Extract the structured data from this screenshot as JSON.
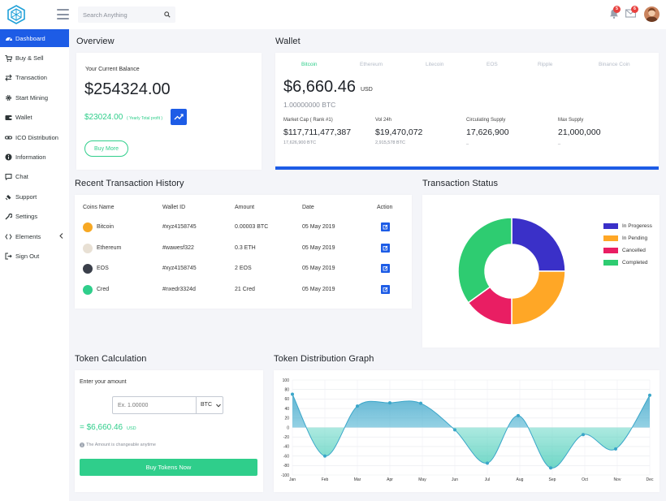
{
  "header": {
    "search_placeholder": "Search Anything",
    "notifications_count": "5",
    "messages_count": "6"
  },
  "sidebar": {
    "items": [
      {
        "label": "Dashboard",
        "icon": "dashboard-icon"
      },
      {
        "label": "Buy & Sell",
        "icon": "cart-icon"
      },
      {
        "label": "Transaction",
        "icon": "exchange-icon"
      },
      {
        "label": "Start Mining",
        "icon": "gear-icon"
      },
      {
        "label": "Wallet",
        "icon": "wallet-icon"
      },
      {
        "label": "ICO Distribution",
        "icon": "link-icon"
      },
      {
        "label": "Information",
        "icon": "info-icon"
      },
      {
        "label": "Chat",
        "icon": "chat-icon"
      },
      {
        "label": "Support",
        "icon": "ticket-icon"
      },
      {
        "label": "Settings",
        "icon": "wrench-icon"
      },
      {
        "label": "Elements",
        "icon": "code-icon"
      },
      {
        "label": "Sign Out",
        "icon": "signout-icon"
      }
    ]
  },
  "overview": {
    "title": "Overview",
    "balance_label": "Your Current Balance",
    "balance": "$254324.00",
    "yearly_value": "$23024.00",
    "yearly_label": "( Yearly Total profit )",
    "buy_more": "Buy More"
  },
  "wallet": {
    "title": "Wallet",
    "tabs": [
      "Bitcoin",
      "Ethereum",
      "Litecoin",
      "EOS",
      "Ripple",
      "Binance Coin"
    ],
    "amount": "$6,660.46",
    "currency": "USD",
    "btc": "1.00000000 BTC",
    "stats": [
      {
        "label": "Market Cap ( Rank #1)",
        "value": "$117,711,477,387",
        "sub": "17,626,900 BTC"
      },
      {
        "label": "Vol 24h",
        "value": "$19,470,072",
        "sub": "2,915,578 BTC"
      },
      {
        "label": "Circulating Supply",
        "value": "17,626,900",
        "sub": "_"
      },
      {
        "label": "Max Supply",
        "value": "21,000,000",
        "sub": "_"
      }
    ]
  },
  "transactions": {
    "title": "Recent Transaction History",
    "headers": [
      "Coins Name",
      "Wallet ID",
      "Amount",
      "Date",
      "Action"
    ],
    "rows": [
      {
        "coin": "Bitcoin",
        "wallet": "#xyz4158745",
        "amount": "0.00003 BTC",
        "date": "05 May 2019",
        "color": "#f7a823"
      },
      {
        "coin": "Ethereum",
        "wallet": "#wawesf322",
        "amount": "0.3 ETH",
        "date": "05 May 2019",
        "color": "#e8e0d4"
      },
      {
        "coin": "EOS",
        "wallet": "#xyz4158745",
        "amount": "2 EOS",
        "date": "05 May 2019",
        "color": "#3a3f4a"
      },
      {
        "coin": "Cred",
        "wallet": "#nxedr3324d",
        "amount": "21 Cred",
        "date": "05 May 2019",
        "color": "#2fce8b"
      }
    ]
  },
  "status": {
    "title": "Transaction Status",
    "legend": [
      {
        "label": "In Progeress",
        "color": "#3a30c8"
      },
      {
        "label": "In Pending",
        "color": "#ffa726"
      },
      {
        "label": "Cancelled",
        "color": "#e91e63"
      },
      {
        "label": "Completed",
        "color": "#2ecc71"
      }
    ]
  },
  "token": {
    "title": "Token Calculation",
    "enter_label": "Enter your amount",
    "input_placeholder": "Ex. 1.00000",
    "unit": "BTC",
    "result": "= $6,660.46",
    "result_unit": "USD",
    "note": "The Amount is changeable anytime",
    "button": "Buy Tokens Now"
  },
  "chart_data": [
    {
      "type": "pie",
      "labels": [
        "In Progeress",
        "In Pending",
        "Cancelled",
        "Completed"
      ],
      "values": [
        25,
        25,
        15,
        35
      ],
      "colors": [
        "#3a30c8",
        "#ffa726",
        "#e91e63",
        "#2ecc71"
      ]
    },
    {
      "type": "area",
      "title": "Token Distribution Graph",
      "categories": [
        "Jan",
        "Feb",
        "Mar",
        "Apr",
        "May",
        "Jun",
        "Jul",
        "Aug",
        "Sep",
        "Oct",
        "Nov",
        "Dec"
      ],
      "x": [
        0,
        1,
        2,
        3,
        3.95,
        5,
        6,
        6.95,
        7.95,
        8.95,
        9.95,
        11
      ],
      "values": [
        70,
        -60,
        45,
        52,
        51,
        -5,
        -75,
        25,
        -85,
        -15,
        -45,
        68
      ],
      "ylim": [
        -100,
        100
      ],
      "yticks": [
        100,
        80,
        60,
        40,
        20,
        0,
        -20,
        -40,
        -60,
        -80,
        -100
      ]
    }
  ]
}
